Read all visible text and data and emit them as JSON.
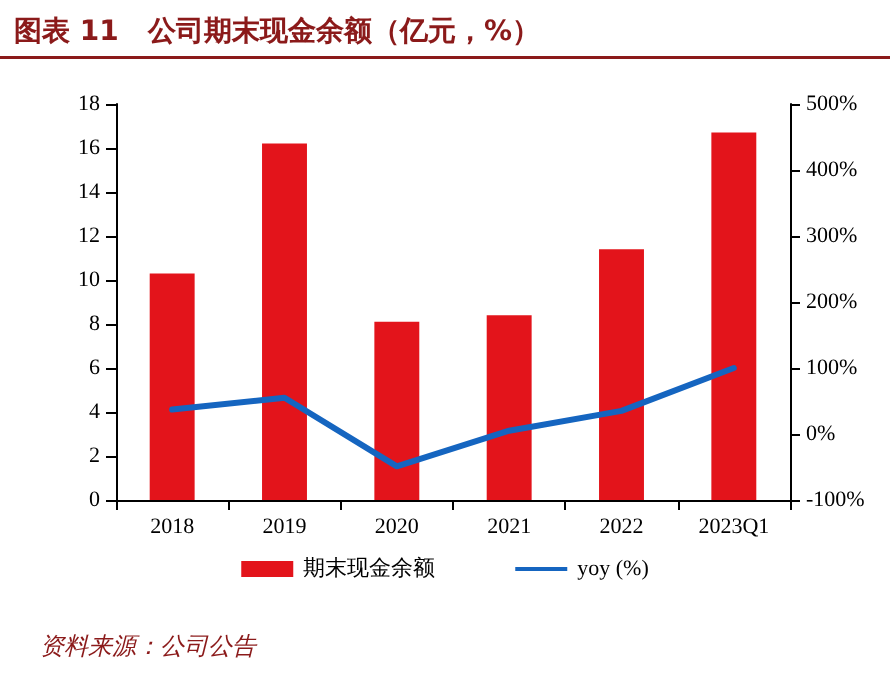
{
  "chart_data": {
    "type": "bar",
    "title": "图表 11   公司期末现金余额（亿元，%）",
    "categories": [
      "2018",
      "2019",
      "2020",
      "2021",
      "2022",
      "2023Q1"
    ],
    "series": [
      {
        "name": "期末现金余额",
        "color": "#e3141b",
        "values": [
          10.3,
          16.2,
          8.1,
          8.4,
          11.4,
          16.7
        ]
      },
      {
        "name": "yoy (%)",
        "type": "line",
        "axis": "y2",
        "color": "#1565c0",
        "values": [
          37,
          55,
          -49,
          5,
          35,
          100
        ]
      }
    ],
    "ylim": [
      0,
      18
    ],
    "yticks": [
      0,
      2,
      4,
      6,
      8,
      10,
      12,
      14,
      16,
      18
    ],
    "y2lim": [
      -100,
      500
    ],
    "y2ticks": [
      {
        "value": -100,
        "label": "-100%"
      },
      {
        "value": 0,
        "label": "0%"
      },
      {
        "value": 100,
        "label": "100%"
      },
      {
        "value": 200,
        "label": "200%"
      },
      {
        "value": 300,
        "label": "300%"
      },
      {
        "value": 400,
        "label": "400%"
      },
      {
        "value": 500,
        "label": "500%"
      }
    ],
    "legend": "bottom",
    "grid": false,
    "marker": "none",
    "annotations": [
      "资料来源：公司公告"
    ]
  }
}
